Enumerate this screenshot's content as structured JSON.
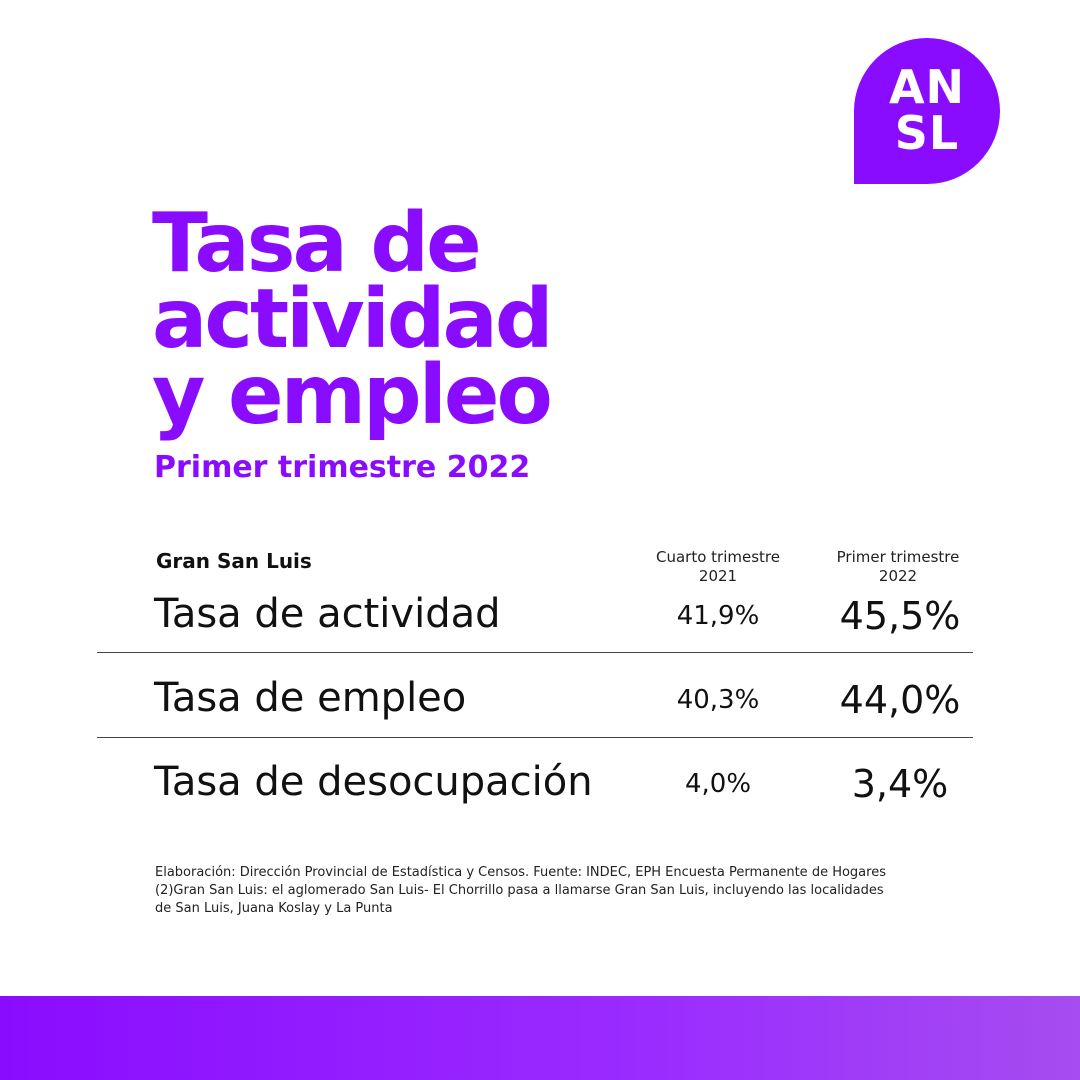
{
  "logo": {
    "line1": "AN",
    "line2": "SL",
    "color": "#8a0cff"
  },
  "title": {
    "line1": "Tasa de",
    "line2": "actividad",
    "line3": "y empleo"
  },
  "subtitle": "Primer trimestre 2022",
  "table": {
    "region": "Gran San Luis",
    "columns": [
      {
        "line1": "Cuarto trimestre",
        "line2": "2021"
      },
      {
        "line1": "Primer trimestre",
        "line2": "2022"
      }
    ],
    "rows": [
      {
        "label": "Tasa de actividad",
        "prev": "41,9%",
        "curr": "45,5%"
      },
      {
        "label": "Tasa de empleo",
        "prev": "40,3%",
        "curr": "44,0%"
      },
      {
        "label": "Tasa de desocupación",
        "prev": "4,0%",
        "curr": "3,4%"
      }
    ]
  },
  "footnote": {
    "line1": "Elaboración: Dirección Provincial de Estadística y Censos. Fuente: INDEC, EPH Encuesta Permanente de Hogares",
    "line2": "(2)Gran San Luis: el aglomerado San Luis- El Chorrillo pasa a llamarse Gran San Luis, incluyendo las localidades",
    "line3": "de San Luis, Juana Koslay y La Punta"
  },
  "accent_color": "#8a0cff"
}
